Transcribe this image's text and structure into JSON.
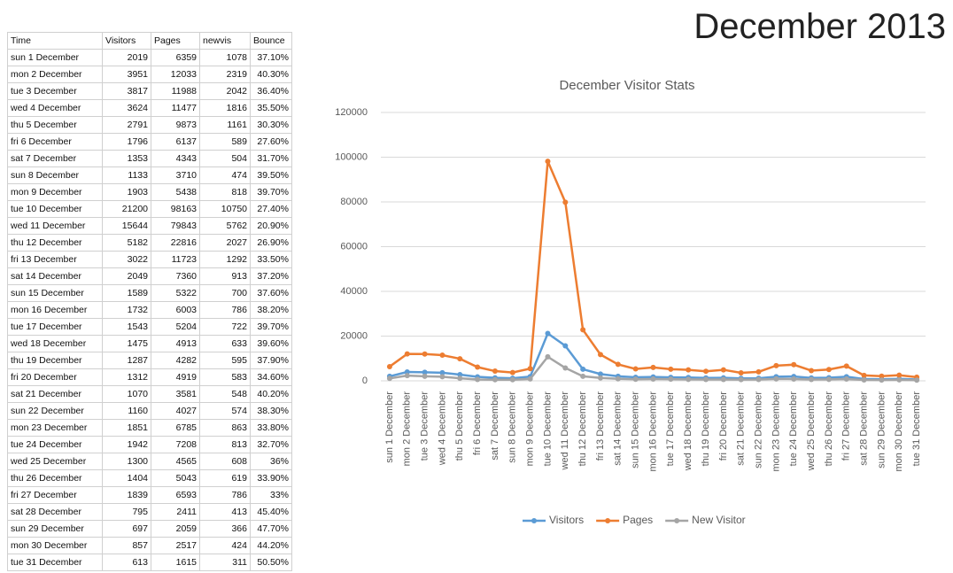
{
  "heading": "December 2013",
  "table": {
    "columns": [
      "Time",
      "Visitors",
      "Pages",
      "newvis",
      "Bounce"
    ],
    "rows": [
      [
        "sun 1 December",
        2019,
        6359,
        1078,
        "37.10%"
      ],
      [
        "mon 2 December",
        3951,
        12033,
        2319,
        "40.30%"
      ],
      [
        "tue 3 December",
        3817,
        11988,
        2042,
        "36.40%"
      ],
      [
        "wed 4 December",
        3624,
        11477,
        1816,
        "35.50%"
      ],
      [
        "thu 5 December",
        2791,
        9873,
        1161,
        "30.30%"
      ],
      [
        "fri 6 December",
        1796,
        6137,
        589,
        "27.60%"
      ],
      [
        "sat 7 December",
        1353,
        4343,
        504,
        "31.70%"
      ],
      [
        "sun 8 December",
        1133,
        3710,
        474,
        "39.50%"
      ],
      [
        "mon 9 December",
        1903,
        5438,
        818,
        "39.70%"
      ],
      [
        "tue 10 December",
        21200,
        98163,
        10750,
        "27.40%"
      ],
      [
        "wed 11 December",
        15644,
        79843,
        5762,
        "20.90%"
      ],
      [
        "thu 12 December",
        5182,
        22816,
        2027,
        "26.90%"
      ],
      [
        "fri 13 December",
        3022,
        11723,
        1292,
        "33.50%"
      ],
      [
        "sat 14 December",
        2049,
        7360,
        913,
        "37.20%"
      ],
      [
        "sun 15 December",
        1589,
        5322,
        700,
        "37.60%"
      ],
      [
        "mon 16 December",
        1732,
        6003,
        786,
        "38.20%"
      ],
      [
        "tue 17 December",
        1543,
        5204,
        722,
        "39.70%"
      ],
      [
        "wed 18 December",
        1475,
        4913,
        633,
        "39.60%"
      ],
      [
        "thu 19 December",
        1287,
        4282,
        595,
        "37.90%"
      ],
      [
        "fri 20 December",
        1312,
        4919,
        583,
        "34.60%"
      ],
      [
        "sat 21 December",
        1070,
        3581,
        548,
        "40.20%"
      ],
      [
        "sun 22 December",
        1160,
        4027,
        574,
        "38.30%"
      ],
      [
        "mon 23 December",
        1851,
        6785,
        863,
        "33.80%"
      ],
      [
        "tue 24 December",
        1942,
        7208,
        813,
        "32.70%"
      ],
      [
        "wed 25 December",
        1300,
        4565,
        608,
        "36%"
      ],
      [
        "thu 26 December",
        1404,
        5043,
        619,
        "33.90%"
      ],
      [
        "fri 27 December",
        1839,
        6593,
        786,
        "33%"
      ],
      [
        "sat 28 December",
        795,
        2411,
        413,
        "45.40%"
      ],
      [
        "sun 29 December",
        697,
        2059,
        366,
        "47.70%"
      ],
      [
        "mon 30 December",
        857,
        2517,
        424,
        "44.20%"
      ],
      [
        "tue 31 December",
        613,
        1615,
        311,
        "50.50%"
      ]
    ]
  },
  "chart_data": {
    "type": "line",
    "title": "December Visitor Stats",
    "categories": [
      "sun 1 December",
      "mon 2 December",
      "tue 3 December",
      "wed 4 December",
      "thu 5 December",
      "fri 6 December",
      "sat 7 December",
      "sun 8 December",
      "mon 9 December",
      "tue 10 December",
      "wed 11 December",
      "thu 12 December",
      "fri 13 December",
      "sat 14 December",
      "sun 15 December",
      "mon 16 December",
      "tue 17 December",
      "wed 18 December",
      "thu 19 December",
      "fri 20 December",
      "sat 21 December",
      "sun 22 December",
      "mon 23 December",
      "tue 24 December",
      "wed 25 December",
      "thu 26 December",
      "fri 27 December",
      "sat 28 December",
      "sun 29 December",
      "mon 30 December",
      "tue 31 December"
    ],
    "series": [
      {
        "name": "Visitors",
        "color": "#5b9bd5",
        "values": [
          2019,
          3951,
          3817,
          3624,
          2791,
          1796,
          1353,
          1133,
          1903,
          21200,
          15644,
          5182,
          3022,
          2049,
          1589,
          1732,
          1543,
          1475,
          1287,
          1312,
          1070,
          1160,
          1851,
          1942,
          1300,
          1404,
          1839,
          795,
          697,
          857,
          613
        ]
      },
      {
        "name": "Pages",
        "color": "#ed7d31",
        "values": [
          6359,
          12033,
          11988,
          11477,
          9873,
          6137,
          4343,
          3710,
          5438,
          98163,
          79843,
          22816,
          11723,
          7360,
          5322,
          6003,
          5204,
          4913,
          4282,
          4919,
          3581,
          4027,
          6785,
          7208,
          4565,
          5043,
          6593,
          2411,
          2059,
          2517,
          1615
        ]
      },
      {
        "name": "New Visitor",
        "color": "#a5a5a5",
        "values": [
          1078,
          2319,
          2042,
          1816,
          1161,
          589,
          504,
          474,
          818,
          10750,
          5762,
          2027,
          1292,
          913,
          700,
          786,
          722,
          633,
          595,
          583,
          548,
          574,
          863,
          813,
          608,
          619,
          786,
          413,
          366,
          424,
          311
        ]
      }
    ],
    "ylim": [
      0,
      120000
    ],
    "yticks": [
      0,
      20000,
      40000,
      60000,
      80000,
      100000,
      120000
    ],
    "grid": true,
    "legend": "bottom"
  }
}
